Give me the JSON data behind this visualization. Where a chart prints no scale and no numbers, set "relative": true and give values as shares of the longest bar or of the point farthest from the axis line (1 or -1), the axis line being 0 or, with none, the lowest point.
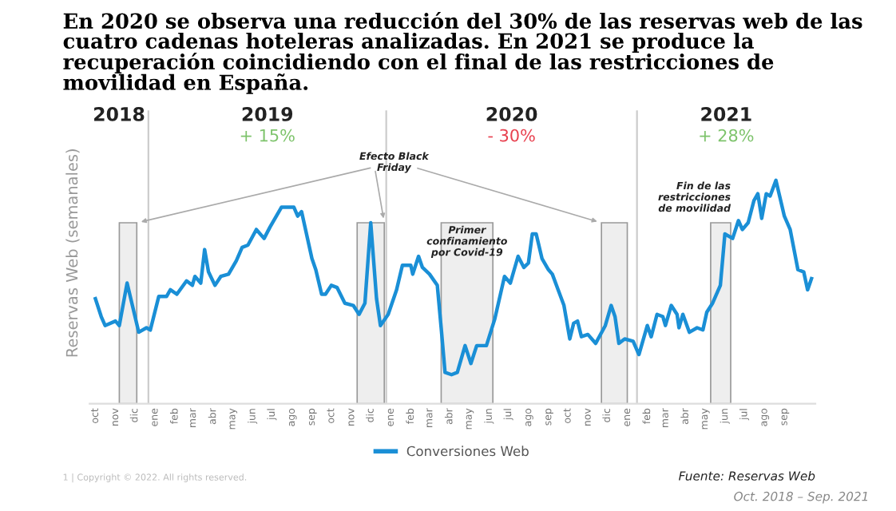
{
  "chart_data": {
    "type": "line",
    "relative": true,
    "title": "En 2020 se observa una reducción del 30% de las reservas web de las cuatro cadenas hoteleras analizadas. En 2021 se produce la recuperación coincidiendo con el final de las restricciones de movilidad en España.",
    "ylabel": "Reservas Web (semanales)",
    "xlim": [
      "2018-09-22",
      "2021-10-19"
    ],
    "xticks": [
      {
        "value": "2018-10-01",
        "label": "oct"
      },
      {
        "value": "2018-11-01",
        "label": "nov"
      },
      {
        "value": "2018-12-01",
        "label": "dic"
      },
      {
        "value": "2019-01-01",
        "label": "ene"
      },
      {
        "value": "2019-02-01",
        "label": "feb"
      },
      {
        "value": "2019-03-01",
        "label": "mar"
      },
      {
        "value": "2019-04-01",
        "label": "abr"
      },
      {
        "value": "2019-05-01",
        "label": "may"
      },
      {
        "value": "2019-06-01",
        "label": "jun"
      },
      {
        "value": "2019-07-01",
        "label": "jul"
      },
      {
        "value": "2019-08-01",
        "label": "ago"
      },
      {
        "value": "2019-09-01",
        "label": "sep"
      },
      {
        "value": "2019-10-01",
        "label": "oct"
      },
      {
        "value": "2019-11-01",
        "label": "nov"
      },
      {
        "value": "2019-12-01",
        "label": "dic"
      },
      {
        "value": "2020-01-01",
        "label": "ene"
      },
      {
        "value": "2020-02-01",
        "label": "feb"
      },
      {
        "value": "2020-03-01",
        "label": "mar"
      },
      {
        "value": "2020-04-01",
        "label": "abr"
      },
      {
        "value": "2020-05-01",
        "label": "may"
      },
      {
        "value": "2020-06-01",
        "label": "jun"
      },
      {
        "value": "2020-07-01",
        "label": "jul"
      },
      {
        "value": "2020-08-01",
        "label": "ago"
      },
      {
        "value": "2020-09-01",
        "label": "sep"
      },
      {
        "value": "2020-10-01",
        "label": "oct"
      },
      {
        "value": "2020-11-01",
        "label": "nov"
      },
      {
        "value": "2020-12-01",
        "label": "dic"
      },
      {
        "value": "2021-01-01",
        "label": "ene"
      },
      {
        "value": "2021-02-01",
        "label": "feb"
      },
      {
        "value": "2021-03-01",
        "label": "mar"
      },
      {
        "value": "2021-04-01",
        "label": "abr"
      },
      {
        "value": "2021-05-01",
        "label": "may"
      },
      {
        "value": "2021-06-01",
        "label": "jun"
      },
      {
        "value": "2021-07-01",
        "label": "jul"
      },
      {
        "value": "2021-08-01",
        "label": "ago"
      },
      {
        "value": "2021-09-01",
        "label": "sep"
      }
    ],
    "x": [
      "2018-10-01",
      "2018-10-10",
      "2018-10-16",
      "2018-11-01",
      "2018-11-07",
      "2018-11-19",
      "2018-11-28",
      "2018-12-07",
      "2018-12-19",
      "2018-12-25",
      "2019-01-07",
      "2019-01-19",
      "2019-01-25",
      "2019-02-04",
      "2019-02-19",
      "2019-02-28",
      "2019-03-04",
      "2019-03-13",
      "2019-03-19",
      "2019-03-25",
      "2019-04-04",
      "2019-04-13",
      "2019-04-25",
      "2019-05-07",
      "2019-05-16",
      "2019-05-25",
      "2019-06-07",
      "2019-06-19",
      "2019-06-28",
      "2019-07-16",
      "2019-07-28",
      "2019-08-04",
      "2019-08-10",
      "2019-08-16",
      "2019-09-01",
      "2019-09-07",
      "2019-09-16",
      "2019-09-22",
      "2019-10-01",
      "2019-10-10",
      "2019-10-22",
      "2019-11-04",
      "2019-11-13",
      "2019-11-22",
      "2019-12-01",
      "2019-12-10",
      "2019-12-16",
      "2019-12-28",
      "2020-01-10",
      "2020-01-19",
      "2020-02-01",
      "2020-02-04",
      "2020-02-13",
      "2020-02-19",
      "2020-03-01",
      "2020-03-13",
      "2020-03-19",
      "2020-03-25",
      "2020-04-04",
      "2020-04-13",
      "2020-04-25",
      "2020-05-04",
      "2020-05-13",
      "2020-05-28",
      "2020-06-10",
      "2020-06-25",
      "2020-07-04",
      "2020-07-16",
      "2020-07-25",
      "2020-08-01",
      "2020-08-07",
      "2020-08-13",
      "2020-08-22",
      "2020-09-01",
      "2020-09-07",
      "2020-09-16",
      "2020-09-25",
      "2020-10-04",
      "2020-10-10",
      "2020-10-16",
      "2020-10-22",
      "2020-11-01",
      "2020-11-13",
      "2020-11-28",
      "2020-12-07",
      "2020-12-13",
      "2020-12-19",
      "2020-12-28",
      "2021-01-10",
      "2021-01-19",
      "2021-02-01",
      "2021-02-07",
      "2021-02-16",
      "2021-02-25",
      "2021-03-01",
      "2021-03-10",
      "2021-03-19",
      "2021-03-22",
      "2021-03-28",
      "2021-04-07",
      "2021-04-19",
      "2021-04-28",
      "2021-05-04",
      "2021-05-13",
      "2021-05-25",
      "2021-06-01",
      "2021-06-13",
      "2021-06-22",
      "2021-06-28",
      "2021-07-07",
      "2021-07-16",
      "2021-07-22",
      "2021-07-28",
      "2021-08-04",
      "2021-08-10",
      "2021-08-19",
      "2021-09-01",
      "2021-09-10",
      "2021-09-22",
      "2021-10-01",
      "2021-10-07",
      "2021-10-13"
    ],
    "series": [
      {
        "name": "Conversiones Web",
        "color": "#1a8fd6",
        "values": [
          0.47,
          0.39,
          0.35,
          0.37,
          0.35,
          0.54,
          0.43,
          0.32,
          0.34,
          0.33,
          0.48,
          0.48,
          0.51,
          0.49,
          0.55,
          0.53,
          0.57,
          0.54,
          0.69,
          0.59,
          0.53,
          0.57,
          0.58,
          0.64,
          0.7,
          0.71,
          0.78,
          0.74,
          0.79,
          0.88,
          0.88,
          0.88,
          0.84,
          0.86,
          0.65,
          0.6,
          0.49,
          0.49,
          0.53,
          0.52,
          0.45,
          0.44,
          0.4,
          0.45,
          0.81,
          0.47,
          0.35,
          0.4,
          0.51,
          0.62,
          0.62,
          0.58,
          0.66,
          0.61,
          0.58,
          0.53,
          0.34,
          0.14,
          0.13,
          0.14,
          0.26,
          0.18,
          0.26,
          0.26,
          0.38,
          0.57,
          0.54,
          0.66,
          0.61,
          0.63,
          0.76,
          0.76,
          0.65,
          0.6,
          0.58,
          0.51,
          0.44,
          0.29,
          0.36,
          0.37,
          0.3,
          0.31,
          0.27,
          0.35,
          0.44,
          0.39,
          0.27,
          0.29,
          0.28,
          0.22,
          0.35,
          0.3,
          0.4,
          0.39,
          0.35,
          0.44,
          0.4,
          0.34,
          0.4,
          0.32,
          0.34,
          0.33,
          0.41,
          0.45,
          0.53,
          0.76,
          0.74,
          0.82,
          0.78,
          0.81,
          0.91,
          0.94,
          0.83,
          0.94,
          0.93,
          1.0,
          0.84,
          0.78,
          0.6,
          0.59,
          0.51,
          0.56
        ]
      }
    ],
    "bands": [
      {
        "axis": "x",
        "from": "2018-11-07",
        "to": "2018-12-04",
        "color": "#eeeeee"
      },
      {
        "axis": "x",
        "from": "2019-11-10",
        "to": "2019-12-22",
        "color": "#eeeeee"
      },
      {
        "axis": "x",
        "from": "2020-03-19",
        "to": "2020-06-07",
        "color": "#eeeeee"
      },
      {
        "axis": "x",
        "from": "2020-11-22",
        "to": "2021-01-01",
        "color": "#eeeeee"
      },
      {
        "axis": "x",
        "from": "2021-05-10",
        "to": "2021-06-10",
        "color": "#eeeeee"
      }
    ],
    "ref_lines": [
      {
        "axis": "x",
        "value": "2018-12-22",
        "color": "#cccccc"
      },
      {
        "axis": "x",
        "value": "2019-12-25",
        "color": "#cccccc"
      },
      {
        "axis": "x",
        "value": "2021-01-16",
        "color": "#cccccc"
      }
    ],
    "annotations": [
      "2018",
      "2019",
      "+ 15%",
      "2020",
      "- 30%",
      "2021",
      "+ 28%",
      "Primer\nconfinamiento\npor Covid-19",
      "Efecto Black\nFriday",
      "Fin de las\nrestricciones\nde movilidad",
      "1 | Copyright © 2022. All rights reserved.",
      "Fuente: Reservas Web",
      "Oct. 2018 – Sep. 2021"
    ],
    "legend": "bottom"
  }
}
